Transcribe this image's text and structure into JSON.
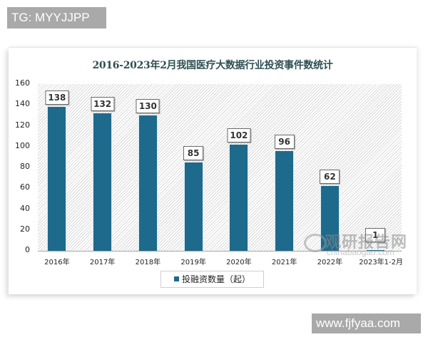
{
  "watermarks": {
    "top": "TG: MYYJJPP",
    "bottom": "www.fjfyaa.com",
    "source_cn": "观研报告网",
    "source_en": "chinabaogao.com"
  },
  "colors": {
    "bar": "#1e6a8c",
    "title": "#2e4f52"
  },
  "chart_data": {
    "type": "bar",
    "title": "2016-2023年2月我国医疗大数据行业投资事件数统计",
    "xlabel": "",
    "ylabel": "",
    "categories": [
      "2016年",
      "2017年",
      "2018年",
      "2019年",
      "2020年",
      "2021年",
      "2022年",
      "2023年1-2月"
    ],
    "series": [
      {
        "name": "投融资数量（起）",
        "values": [
          138,
          132,
          130,
          85,
          102,
          96,
          62,
          1
        ]
      }
    ],
    "values": [
      138,
      132,
      130,
      85,
      102,
      96,
      62,
      1
    ],
    "ylim": [
      0,
      160
    ],
    "yticks": [
      "0",
      "20",
      "40",
      "60",
      "80",
      "100",
      "120",
      "140",
      "160"
    ],
    "grid": false,
    "legend_position": "bottom",
    "data_labels": [
      "138",
      "132",
      "130",
      "85",
      "102",
      "96",
      "62",
      "1"
    ]
  }
}
